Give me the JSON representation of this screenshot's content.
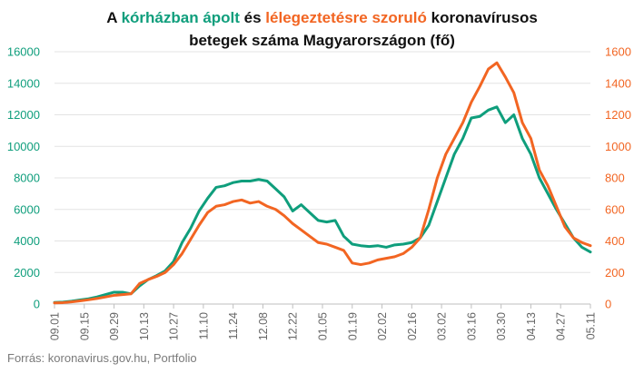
{
  "chart_data": {
    "type": "line",
    "title": {
      "line1": [
        {
          "text": "A ",
          "color": "#111111"
        },
        {
          "text": "kórházban ápolt",
          "color": "#0f9e7c"
        },
        {
          "text": " és ",
          "color": "#111111"
        },
        {
          "text": "lélegeztetésre szoruló",
          "color": "#f26522"
        },
        {
          "text": " koronavírusos",
          "color": "#111111"
        }
      ],
      "line2": "betegek száma Magyarországon  (fő)"
    },
    "source": "Forrás: koronavirus.gov.hu, Portfolio",
    "colors": {
      "hospitalized": "#0f9e7c",
      "ventilated": "#f26522",
      "grid": "#e3e3e3",
      "axis": "#bfbfbf"
    },
    "x_tick_labels": [
      "09.01",
      "09.15",
      "09.29",
      "10.13",
      "10.27",
      "11.10",
      "11.24",
      "12.08",
      "12.22",
      "01.05",
      "01.19",
      "02.02",
      "02.16",
      "03.02",
      "03.16",
      "03.30",
      "04.13",
      "04.27",
      "05.11"
    ],
    "y_left": {
      "min": 0,
      "max": 16000,
      "ticks": [
        0,
        2000,
        4000,
        6000,
        8000,
        10000,
        12000,
        14000,
        16000
      ],
      "tick_labels": [
        "0",
        "2000",
        "4000",
        "6000",
        "8000",
        "10000",
        "12000",
        "14000",
        "16000"
      ],
      "color": "#0f9e7c"
    },
    "y_right": {
      "min": 0,
      "max": 1600,
      "ticks": [
        0,
        200,
        400,
        600,
        800,
        1000,
        1200,
        1400,
        1600
      ],
      "tick_labels": [
        "0",
        "200",
        "400",
        "600",
        "800",
        "1000",
        "1200",
        "1400",
        "1600"
      ],
      "color": "#f26522"
    },
    "grid": true,
    "series": [
      {
        "axis": "left",
        "color": "#0f9e7c",
        "points": [
          [
            "09.01",
            100
          ],
          [
            "09.05",
            120
          ],
          [
            "09.09",
            180
          ],
          [
            "09.13",
            260
          ],
          [
            "09.17",
            330
          ],
          [
            "09.21",
            450
          ],
          [
            "09.25",
            600
          ],
          [
            "09.29",
            750
          ],
          [
            "10.03",
            750
          ],
          [
            "10.07",
            650
          ],
          [
            "10.11",
            1150
          ],
          [
            "10.15",
            1550
          ],
          [
            "10.19",
            1800
          ],
          [
            "10.23",
            2100
          ],
          [
            "10.27",
            2700
          ],
          [
            "10.31",
            3900
          ],
          [
            "11.04",
            4800
          ],
          [
            "11.08",
            5900
          ],
          [
            "11.12",
            6700
          ],
          [
            "11.16",
            7400
          ],
          [
            "11.20",
            7500
          ],
          [
            "11.24",
            7700
          ],
          [
            "11.28",
            7800
          ],
          [
            "12.02",
            7800
          ],
          [
            "12.06",
            7900
          ],
          [
            "12.10",
            7800
          ],
          [
            "12.14",
            7300
          ],
          [
            "12.18",
            6800
          ],
          [
            "12.22",
            5900
          ],
          [
            "12.26",
            6300
          ],
          [
            "12.30",
            5800
          ],
          [
            "01.03",
            5300
          ],
          [
            "01.07",
            5200
          ],
          [
            "01.11",
            5300
          ],
          [
            "01.15",
            4300
          ],
          [
            "01.19",
            3800
          ],
          [
            "01.23",
            3700
          ],
          [
            "01.27",
            3650
          ],
          [
            "01.31",
            3700
          ],
          [
            "02.04",
            3600
          ],
          [
            "02.08",
            3750
          ],
          [
            "02.12",
            3800
          ],
          [
            "02.16",
            3900
          ],
          [
            "02.20",
            4200
          ],
          [
            "02.24",
            5000
          ],
          [
            "02.28",
            6500
          ],
          [
            "03.04",
            8000
          ],
          [
            "03.08",
            9500
          ],
          [
            "03.12",
            10500
          ],
          [
            "03.16",
            11800
          ],
          [
            "03.20",
            11900
          ],
          [
            "03.24",
            12300
          ],
          [
            "03.28",
            12500
          ],
          [
            "04.01",
            11500
          ],
          [
            "04.05",
            12000
          ],
          [
            "04.09",
            10500
          ],
          [
            "04.13",
            9500
          ],
          [
            "04.17",
            8000
          ],
          [
            "04.21",
            7000
          ],
          [
            "04.25",
            6000
          ],
          [
            "04.29",
            5100
          ],
          [
            "05.03",
            4200
          ],
          [
            "05.07",
            3600
          ],
          [
            "05.11",
            3300
          ]
        ]
      },
      {
        "axis": "right",
        "color": "#f26522",
        "points": [
          [
            "09.01",
            7
          ],
          [
            "09.05",
            9
          ],
          [
            "09.09",
            14
          ],
          [
            "09.13",
            20
          ],
          [
            "09.17",
            27
          ],
          [
            "09.21",
            35
          ],
          [
            "09.25",
            45
          ],
          [
            "09.29",
            55
          ],
          [
            "10.03",
            60
          ],
          [
            "10.07",
            65
          ],
          [
            "10.11",
            130
          ],
          [
            "10.15",
            155
          ],
          [
            "10.19",
            175
          ],
          [
            "10.23",
            200
          ],
          [
            "10.27",
            250
          ],
          [
            "10.31",
            320
          ],
          [
            "11.04",
            410
          ],
          [
            "11.08",
            500
          ],
          [
            "11.12",
            580
          ],
          [
            "11.16",
            620
          ],
          [
            "11.20",
            630
          ],
          [
            "11.24",
            650
          ],
          [
            "11.28",
            660
          ],
          [
            "12.02",
            640
          ],
          [
            "12.06",
            650
          ],
          [
            "12.10",
            620
          ],
          [
            "12.14",
            600
          ],
          [
            "12.18",
            560
          ],
          [
            "12.22",
            510
          ],
          [
            "12.26",
            470
          ],
          [
            "12.30",
            430
          ],
          [
            "01.03",
            390
          ],
          [
            "01.07",
            380
          ],
          [
            "01.11",
            360
          ],
          [
            "01.15",
            340
          ],
          [
            "01.19",
            260
          ],
          [
            "01.23",
            250
          ],
          [
            "01.27",
            260
          ],
          [
            "01.31",
            280
          ],
          [
            "02.04",
            290
          ],
          [
            "02.08",
            300
          ],
          [
            "02.12",
            320
          ],
          [
            "02.16",
            360
          ],
          [
            "02.20",
            420
          ],
          [
            "02.24",
            600
          ],
          [
            "02.28",
            800
          ],
          [
            "03.04",
            950
          ],
          [
            "03.08",
            1050
          ],
          [
            "03.12",
            1150
          ],
          [
            "03.16",
            1280
          ],
          [
            "03.20",
            1380
          ],
          [
            "03.24",
            1490
          ],
          [
            "03.28",
            1530
          ],
          [
            "04.01",
            1440
          ],
          [
            "04.05",
            1340
          ],
          [
            "04.09",
            1150
          ],
          [
            "04.13",
            1050
          ],
          [
            "04.17",
            850
          ],
          [
            "04.21",
            750
          ],
          [
            "04.25",
            620
          ],
          [
            "04.29",
            490
          ],
          [
            "05.03",
            420
          ],
          [
            "05.07",
            390
          ],
          [
            "05.11",
            370
          ]
        ]
      }
    ]
  }
}
